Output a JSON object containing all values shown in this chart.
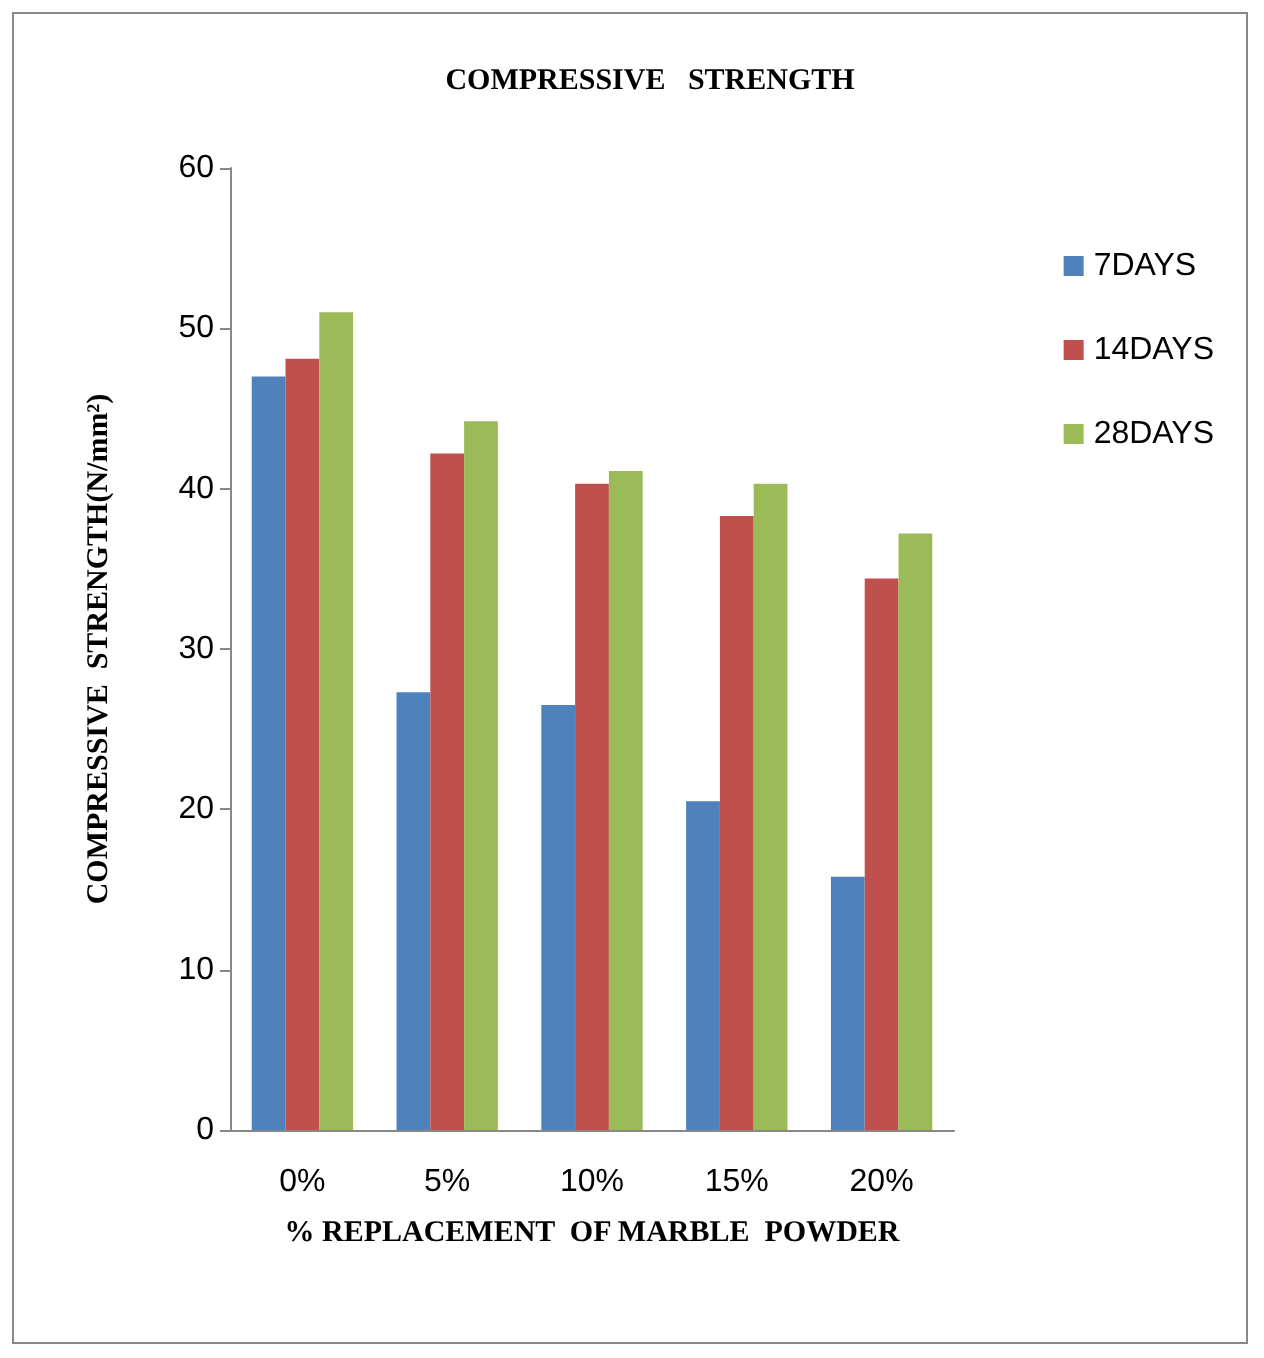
{
  "chart_data": {
    "type": "bar",
    "title": "COMPRESSIVE   STRENGTH",
    "xlabel": "% REPLACEMENT  OF MARBLE  POWDER",
    "ylabel": "COMPRESSIVE  STRENGTH(N/mm²)",
    "categories": [
      "0%",
      "5%",
      "10%",
      "15%",
      "20%"
    ],
    "series": [
      {
        "name": "7DAYS",
        "color": "#4f81bd",
        "values": [
          47.0,
          27.3,
          26.5,
          20.5,
          15.8
        ]
      },
      {
        "name": "14DAYS",
        "color": "#c0504d",
        "values": [
          48.1,
          42.2,
          40.3,
          38.3,
          34.4
        ]
      },
      {
        "name": "28DAYS",
        "color": "#9bbb59",
        "values": [
          51.0,
          44.2,
          41.1,
          40.3,
          37.2
        ]
      }
    ],
    "ylim": [
      0,
      60
    ],
    "yticks": [
      0,
      10,
      20,
      30,
      40,
      50,
      60
    ],
    "grid": false,
    "legend": "right"
  }
}
